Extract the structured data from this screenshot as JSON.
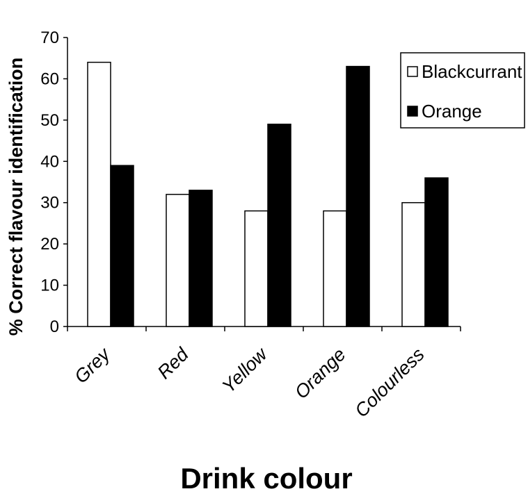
{
  "chart_data": {
    "type": "bar",
    "title": "",
    "xlabel": "Drink colour",
    "ylabel": "% Correct flavour identification",
    "categories": [
      "Grey",
      "Red",
      "Yellow",
      "Orange",
      "Colourless"
    ],
    "series": [
      {
        "name": "Blackcurrant",
        "values": [
          64,
          32,
          28,
          28,
          30
        ]
      },
      {
        "name": "Orange",
        "values": [
          39,
          33,
          49,
          63,
          36
        ]
      }
    ],
    "ylim": [
      0,
      70
    ],
    "yticks": [
      "0",
      "10",
      "20",
      "30",
      "40",
      "50",
      "60",
      "70"
    ],
    "grid": false,
    "legend_position": "top-right",
    "colors": {
      "Blackcurrant": "#ffffff",
      "Orange": "#000000",
      "axis": "#000000"
    }
  }
}
